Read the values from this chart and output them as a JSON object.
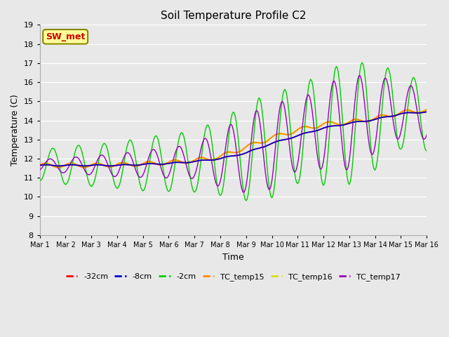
{
  "title": "Soil Temperature Profile C2",
  "xlabel": "Time",
  "ylabel": "Temperature (C)",
  "ylim": [
    8.0,
    19.0
  ],
  "yticks": [
    8.0,
    9.0,
    10.0,
    11.0,
    12.0,
    13.0,
    14.0,
    15.0,
    16.0,
    17.0,
    18.0,
    19.0
  ],
  "background_color": "#e8e8e8",
  "plot_bg_color": "#e8e8e8",
  "annotation_text": "SW_met",
  "annotation_color": "#cc0000",
  "annotation_bg": "#ffff99",
  "annotation_border": "#888800",
  "xtick_labels": [
    "Mar 1",
    "Mar 2",
    "Mar 3",
    "Mar 4",
    "Mar 5",
    "Mar 6",
    "Mar 7",
    "Mar 8",
    "Mar 9",
    "Mar 10",
    "Mar 11",
    "Mar 12",
    "Mar 13",
    "Mar 14",
    "Mar 15",
    "Mar 16"
  ],
  "n_days": 16,
  "colors": {
    "minus32": "#ff0000",
    "minus8": "#0000cc",
    "minus2": "#00cc00",
    "tc15": "#ff8800",
    "tc16": "#dddd00",
    "tc17": "#9900bb"
  }
}
